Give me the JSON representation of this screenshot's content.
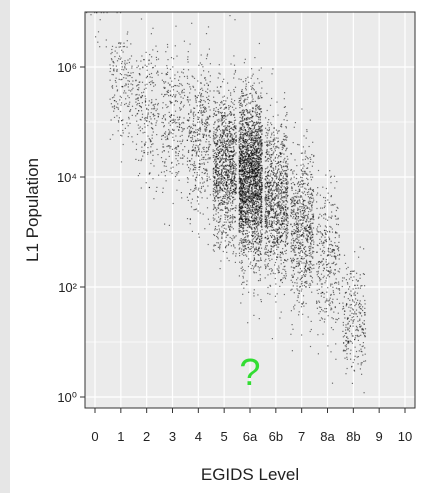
{
  "chart_data": {
    "type": "scatter",
    "xlabel": "EGIDS Level",
    "ylabel": "L1 Population",
    "x_categories": [
      "0",
      "1",
      "2",
      "3",
      "4",
      "5",
      "6a",
      "6b",
      "7",
      "8a",
      "8b",
      "9",
      "10"
    ],
    "y_scale": "log10",
    "ylim": [
      1,
      10000000
    ],
    "y_ticks": [
      1,
      100,
      10000,
      1000000
    ],
    "y_tick_labels": [
      "10⁰",
      "10²",
      "10⁴",
      "10⁶"
    ],
    "grid": true,
    "legend": "none",
    "point_color": "#000000",
    "annotation": {
      "text": "?",
      "x": "6a",
      "y": 3,
      "color": "#33dd33"
    },
    "clusters": [
      {
        "x": "0",
        "n": 15,
        "log10_median": 6.8,
        "log10_spread": 0.3
      },
      {
        "x": "1",
        "n": 180,
        "log10_median": 5.7,
        "log10_spread": 0.55
      },
      {
        "x": "2",
        "n": 230,
        "log10_median": 5.3,
        "log10_spread": 0.6
      },
      {
        "x": "3",
        "n": 260,
        "log10_median": 5.0,
        "log10_spread": 0.65
      },
      {
        "x": "4",
        "n": 420,
        "log10_median": 4.7,
        "log10_spread": 0.7
      },
      {
        "x": "5",
        "n": 1100,
        "log10_median": 4.2,
        "log10_spread": 0.7
      },
      {
        "x": "6a",
        "n": 2300,
        "log10_median": 4.0,
        "log10_spread": 0.75
      },
      {
        "x": "6b",
        "n": 1000,
        "log10_median": 3.6,
        "log10_spread": 0.7
      },
      {
        "x": "7",
        "n": 700,
        "log10_median": 3.1,
        "log10_spread": 0.7
      },
      {
        "x": "8a",
        "n": 330,
        "log10_median": 2.5,
        "log10_spread": 0.7
      },
      {
        "x": "8b",
        "n": 260,
        "log10_median": 1.4,
        "log10_spread": 0.6
      }
    ]
  }
}
